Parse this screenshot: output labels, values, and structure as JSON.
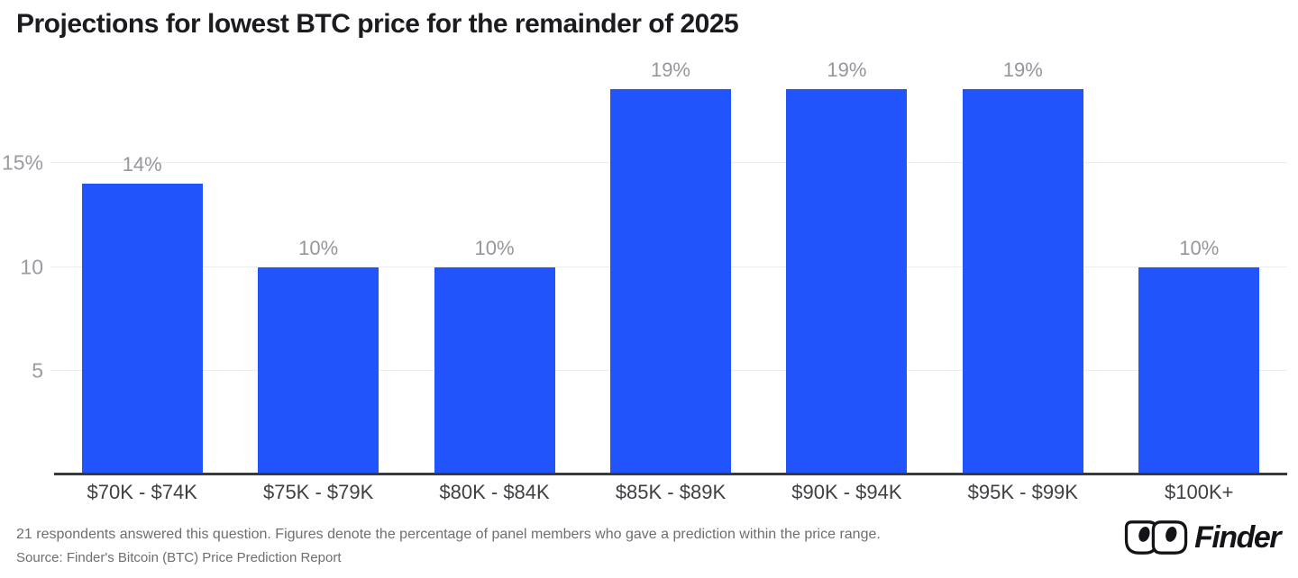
{
  "title": "Projections for lowest BTC price for the remainder of 2025",
  "chart_data": {
    "type": "bar",
    "title": "Projections for lowest BTC price for the remainder of 2025",
    "categories": [
      "$70K - $74K",
      "$75K - $79K",
      "$80K - $84K",
      "$85K - $89K",
      "$90K - $94K",
      "$95K - $99K",
      "$100K+"
    ],
    "values": [
      14,
      10,
      10,
      19,
      19,
      19,
      10
    ],
    "bar_labels": [
      "14%",
      "10%",
      "10%",
      "19%",
      "19%",
      "19%",
      "10%"
    ],
    "xlabel": "",
    "ylabel": "",
    "ylim": [
      0,
      20
    ],
    "yticks": [
      {
        "value": 15,
        "label": "15%"
      },
      {
        "value": 10,
        "label": "10"
      },
      {
        "value": 5,
        "label": "5"
      }
    ],
    "grid": true,
    "legend": false,
    "bar_color": "#2154fb",
    "value_label_color": "#96969c",
    "axis_label_color": "#9b9ba1"
  },
  "footer": {
    "note": "21 respondents answered this question. Figures denote the percentage of panel members who gave a prediction within the price range.",
    "source": "Source: Finder's Bitcoin (BTC) Price Prediction Report"
  },
  "branding": {
    "logo_text": "Finder"
  }
}
